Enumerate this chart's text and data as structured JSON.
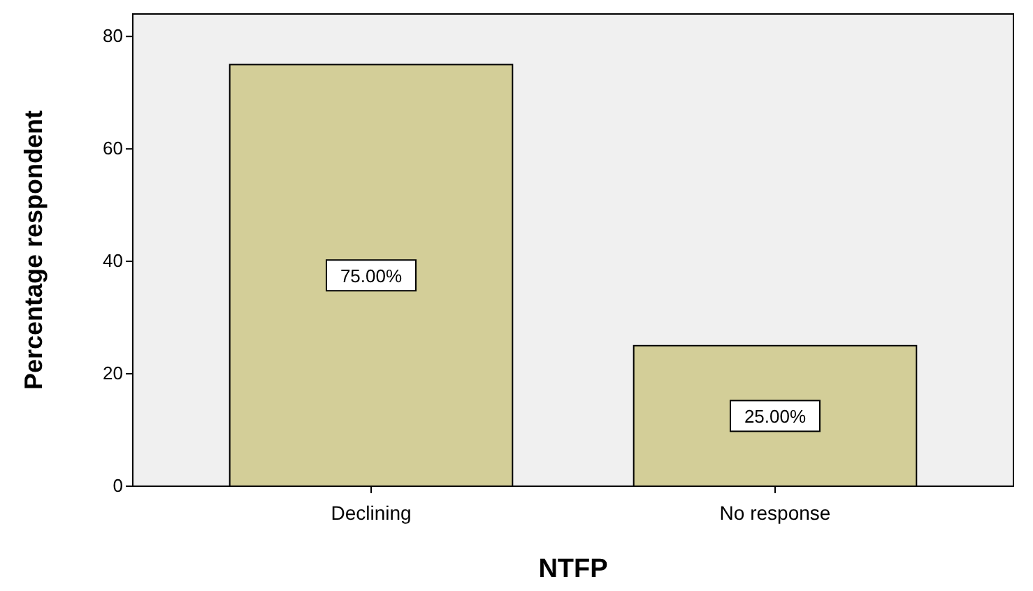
{
  "chart_data": {
    "type": "bar",
    "xlabel": "NTFP",
    "ylabel": "Percentage respondent",
    "categories": [
      "Declining",
      "No response"
    ],
    "values": [
      75,
      25
    ],
    "value_labels": [
      "75.00%",
      "25.00%"
    ],
    "color": "#d3ce98",
    "ylim": [
      0,
      84
    ],
    "yticks": [
      0,
      20,
      40,
      60,
      80
    ],
    "grid": false
  }
}
